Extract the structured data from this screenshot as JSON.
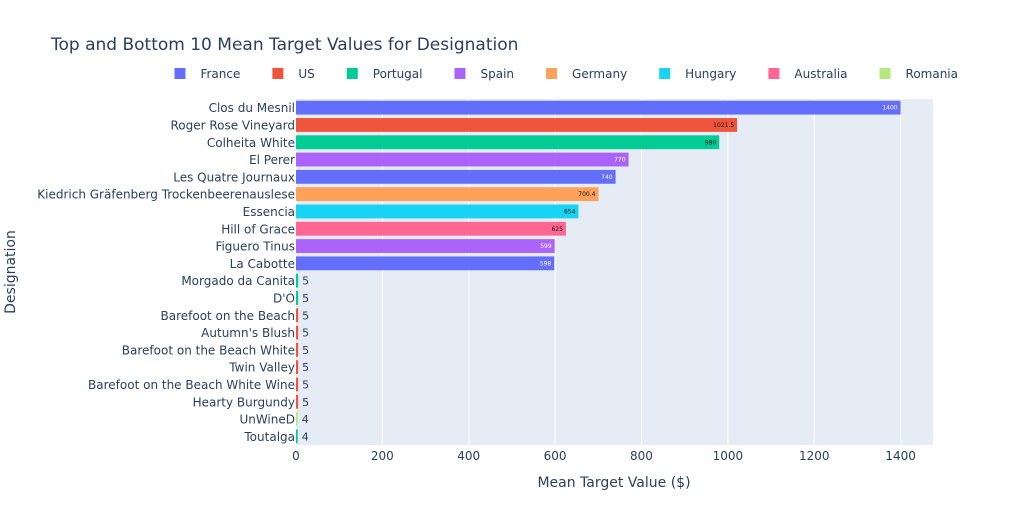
{
  "chart_data": {
    "type": "bar",
    "orientation": "horizontal",
    "title": "Top and Bottom 10 Mean Target Values for Designation",
    "xlabel": "Mean Target Value ($)",
    "ylabel": "Designation",
    "xlim": [
      0,
      1475
    ],
    "xticks": [
      0,
      200,
      400,
      600,
      800,
      1000,
      1200,
      1400
    ],
    "grid": true,
    "legend_position": "top",
    "legend": [
      {
        "name": "France",
        "color": "#636efa"
      },
      {
        "name": "US",
        "color": "#ef553b"
      },
      {
        "name": "Portugal",
        "color": "#00cc96"
      },
      {
        "name": "Spain",
        "color": "#ab63fa"
      },
      {
        "name": "Germany",
        "color": "#ffa15a"
      },
      {
        "name": "Hungary",
        "color": "#19d3f3"
      },
      {
        "name": "Australia",
        "color": "#ff6692"
      },
      {
        "name": "Romania",
        "color": "#b6e880"
      }
    ],
    "bars": [
      {
        "label": "Clos du Mesnil",
        "value": 1400,
        "value_text": "1400",
        "country": "France"
      },
      {
        "label": "Roger Rose Vineyard",
        "value": 1021.5,
        "value_text": "1021.5",
        "country": "US"
      },
      {
        "label": "Colheita White",
        "value": 980,
        "value_text": "980",
        "country": "Portugal"
      },
      {
        "label": "El Perer",
        "value": 770,
        "value_text": "770",
        "country": "Spain"
      },
      {
        "label": "Les Quatre Journaux",
        "value": 740,
        "value_text": "740",
        "country": "France"
      },
      {
        "label": "Kiedrich Gräfenberg Trockenbeerenauslese",
        "value": 700.4,
        "value_text": "700.4",
        "country": "Germany"
      },
      {
        "label": "Essencia",
        "value": 654,
        "value_text": "654",
        "country": "Hungary"
      },
      {
        "label": "Hill of Grace",
        "value": 625,
        "value_text": "625",
        "country": "Australia"
      },
      {
        "label": "Figuero Tinus",
        "value": 599,
        "value_text": "599",
        "country": "Spain"
      },
      {
        "label": "La Cabotte",
        "value": 598,
        "value_text": "598",
        "country": "France"
      },
      {
        "label": "Morgado da Canita",
        "value": 5,
        "value_text": "5",
        "country": "Portugal"
      },
      {
        "label": "D'Ó",
        "value": 5,
        "value_text": "5",
        "country": "Portugal"
      },
      {
        "label": "Barefoot on the Beach",
        "value": 5,
        "value_text": "5",
        "country": "US"
      },
      {
        "label": "Autumn's Blush",
        "value": 5,
        "value_text": "5",
        "country": "US"
      },
      {
        "label": "Barefoot on the Beach White",
        "value": 5,
        "value_text": "5",
        "country": "US"
      },
      {
        "label": "Twin Valley",
        "value": 5,
        "value_text": "5",
        "country": "US"
      },
      {
        "label": "Barefoot on the Beach White Wine",
        "value": 5,
        "value_text": "5",
        "country": "US"
      },
      {
        "label": "Hearty Burgundy",
        "value": 5,
        "value_text": "5",
        "country": "US"
      },
      {
        "label": "UnWineD",
        "value": 4,
        "value_text": "4",
        "country": "Romania"
      },
      {
        "label": "Toutalga",
        "value": 4,
        "value_text": "4",
        "country": "Portugal"
      }
    ]
  }
}
